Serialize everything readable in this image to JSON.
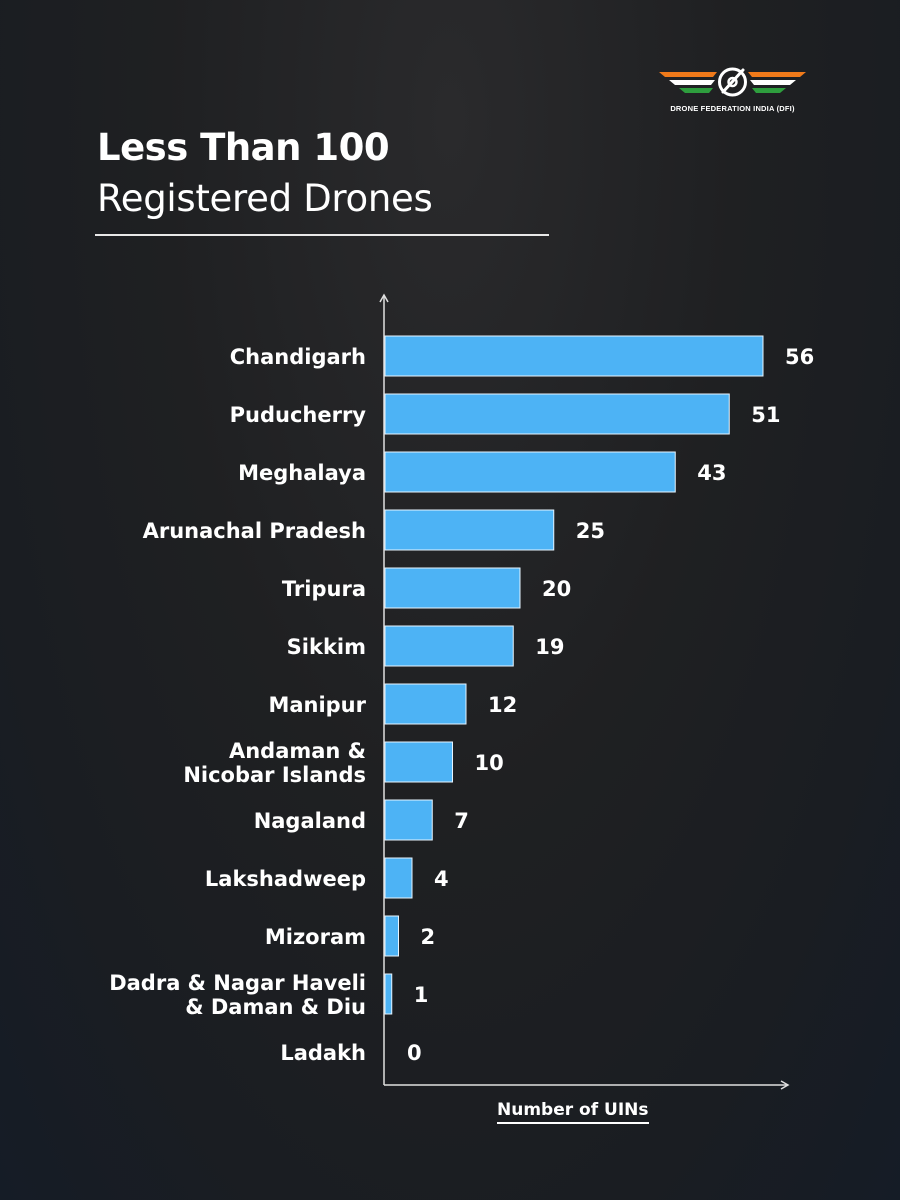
{
  "brand": {
    "name": "DRONE FEDERATION INDIA (DFI)",
    "logo_icon": "dfi-winged-drone-logo",
    "colors": {
      "saffron": "#f07a1a",
      "white": "#ffffff",
      "green": "#2e9e3e"
    }
  },
  "header": {
    "title": "Less Than 100",
    "subtitle": "Registered Drones"
  },
  "colors": {
    "bar": "#4db3f5",
    "bar_border": "#e6f4ff",
    "axis": "#e0e0e0",
    "text": "#ffffff"
  },
  "chart_data": {
    "type": "bar",
    "orientation": "horizontal",
    "title": "Less Than 100 Registered Drones",
    "xlabel": "Number of UINs",
    "ylabel": "",
    "xlim": [
      0,
      63
    ],
    "grid": false,
    "legend": "none",
    "categories": [
      [
        "Chandigarh"
      ],
      [
        "Puducherry"
      ],
      [
        "Meghalaya"
      ],
      [
        "Arunachal Pradesh"
      ],
      [
        "Tripura"
      ],
      [
        "Sikkim"
      ],
      [
        "Manipur"
      ],
      [
        "Andaman &",
        "Nicobar Islands"
      ],
      [
        "Nagaland"
      ],
      [
        "Lakshadweep"
      ],
      [
        "Mizoram"
      ],
      [
        "Dadra & Nagar Haveli",
        "& Daman & Diu"
      ],
      [
        "Ladakh"
      ]
    ],
    "values": [
      56,
      51,
      43,
      25,
      20,
      19,
      12,
      10,
      7,
      4,
      2,
      1,
      0
    ]
  }
}
